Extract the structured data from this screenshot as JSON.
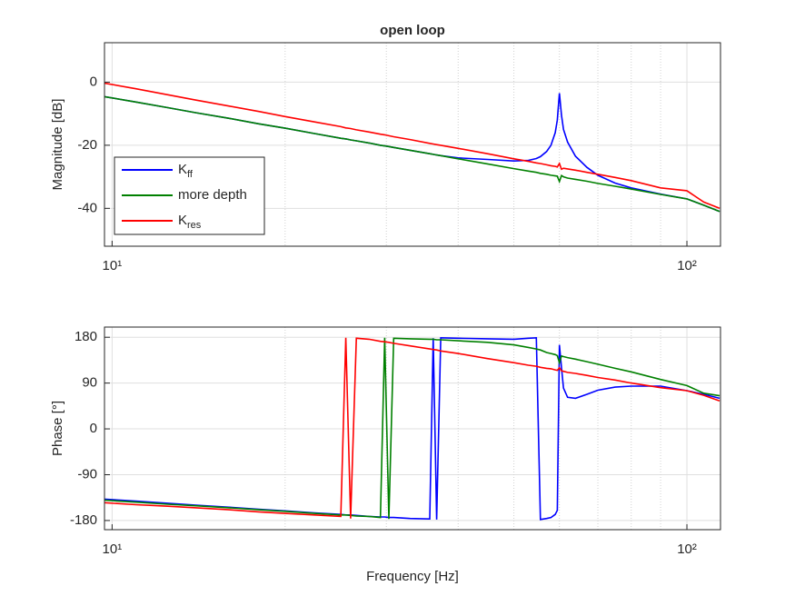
{
  "chart_data": [
    {
      "type": "line",
      "title": "open loop",
      "ylabel": "Magnitude [dB]",
      "log_x": true,
      "grid": true,
      "legend": "southwest",
      "xlim": [
        9.7,
        114.4
      ],
      "xticks": [
        {
          "value": 10,
          "label": "10¹"
        },
        {
          "value": 100,
          "label": "10²"
        }
      ],
      "xminorticks": [
        20,
        30,
        40,
        50,
        60,
        70,
        80,
        90
      ],
      "ylim": [
        -52,
        12.5
      ],
      "yticks": [
        -40,
        -20,
        0
      ],
      "x": [
        9.7,
        11,
        12.5,
        14,
        16,
        18,
        20,
        22.5,
        25,
        25.5,
        26,
        26.6,
        28,
        29.3,
        29.8,
        30.3,
        30.9,
        33,
        35.7,
        36.2,
        36.7,
        37.3,
        40,
        45,
        50,
        53,
        54.7,
        55.6,
        57,
        58,
        59,
        59.5,
        60,
        60.5,
        61,
        62,
        64,
        67,
        70,
        75,
        80,
        90,
        100,
        107,
        114
      ],
      "series": [
        {
          "name": "K_ff",
          "color": "#0000ff",
          "values": [
            -4.6,
            -6.3,
            -8.1,
            -9.7,
            -11.5,
            -13.2,
            -14.6,
            -16.3,
            -17.8,
            -18.0,
            -18.3,
            -18.6,
            -19.3,
            -20.0,
            -20.2,
            -20.4,
            -20.7,
            -21.6,
            -22.7,
            -22.9,
            -23.1,
            -23.3,
            -24.0,
            -24.5,
            -25.0,
            -24.8,
            -24.2,
            -23.6,
            -22.0,
            -20.0,
            -16.0,
            -12.0,
            -3.5,
            -10.5,
            -15.0,
            -19.0,
            -23.5,
            -27.0,
            -29.5,
            -32.0,
            -33.5,
            -35.5,
            -37.0,
            -39.0,
            -41.0
          ]
        },
        {
          "name": "more depth",
          "color": "#008000",
          "values": [
            -4.6,
            -6.3,
            -8.1,
            -9.7,
            -11.5,
            -13.2,
            -14.6,
            -16.3,
            -17.8,
            -18.0,
            -18.3,
            -18.6,
            -19.3,
            -20.0,
            -20.2,
            -20.4,
            -20.7,
            -21.6,
            -22.7,
            -22.9,
            -23.1,
            -23.3,
            -24.3,
            -25.9,
            -27.4,
            -28.2,
            -28.6,
            -28.9,
            -29.2,
            -29.5,
            -29.7,
            -29.8,
            -31.5,
            -29.6,
            -30.0,
            -30.4,
            -30.8,
            -31.4,
            -32.1,
            -33.0,
            -33.9,
            -35.6,
            -37.0,
            -39.0,
            -41.0
          ]
        },
        {
          "name": "K_res",
          "color": "#ff0000",
          "values": [
            -0.3,
            -2.1,
            -4.0,
            -5.7,
            -7.6,
            -9.3,
            -10.9,
            -12.6,
            -14.1,
            -14.5,
            -14.7,
            -15.1,
            -15.8,
            -16.5,
            -16.7,
            -17.0,
            -17.3,
            -18.2,
            -19.4,
            -19.6,
            -19.8,
            -20.0,
            -21.0,
            -22.7,
            -24.3,
            -25.1,
            -25.6,
            -25.8,
            -26.2,
            -26.5,
            -26.7,
            -26.9,
            -25.8,
            -27.6,
            -27.3,
            -27.5,
            -27.9,
            -28.6,
            -29.2,
            -30.2,
            -31.2,
            -33.5,
            -34.4,
            -38.0,
            -40.0
          ]
        }
      ]
    },
    {
      "type": "line",
      "ylabel": "Phase [°]",
      "xlabel": "Frequency [Hz]",
      "log_x": true,
      "grid": true,
      "xlim": [
        9.7,
        114.4
      ],
      "xticks": [
        {
          "value": 10,
          "label": "10¹"
        },
        {
          "value": 100,
          "label": "10²"
        }
      ],
      "xminorticks": [
        20,
        30,
        40,
        50,
        60,
        70,
        80,
        90
      ],
      "ylim": [
        -198,
        200
      ],
      "yticks": [
        -180,
        -90,
        0,
        90,
        180
      ],
      "x": [
        9.7,
        11,
        12.5,
        14,
        16,
        18,
        20,
        22.5,
        25,
        25.5,
        26,
        26.6,
        28,
        29.3,
        29.8,
        30.3,
        30.9,
        33,
        35.7,
        36.2,
        36.7,
        37.3,
        40,
        45,
        50,
        53,
        54.7,
        55.6,
        57,
        58,
        59,
        59.5,
        60,
        60.5,
        61,
        62,
        64,
        67,
        70,
        75,
        80,
        90,
        100,
        107,
        114
      ],
      "series": [
        {
          "color": "#0000ff",
          "values": [
            -138,
            -142,
            -146,
            -150,
            -154,
            -158,
            -161,
            -165,
            -168,
            -169,
            -169,
            -170,
            -172,
            -173,
            -173,
            -174,
            -174,
            -176,
            -177,
            178,
            -178,
            179,
            178,
            177,
            176,
            178,
            179,
            -178,
            -176,
            -174,
            -168,
            -160,
            165,
            120,
            80,
            62,
            60,
            68,
            76,
            82,
            84,
            84,
            75,
            68,
            60
          ]
        },
        {
          "color": "#008000",
          "values": [
            -140,
            -144,
            -148,
            -151,
            -155,
            -159,
            -162,
            -166,
            -169,
            -169,
            -170,
            -171,
            -172,
            -174,
            179,
            -177,
            178,
            177,
            176,
            176,
            175,
            175,
            173,
            170,
            165,
            160,
            157,
            155,
            150,
            148,
            146,
            144,
            130,
            143,
            142,
            140,
            137,
            132,
            127,
            119,
            112,
            97,
            85,
            70,
            65
          ]
        },
        {
          "color": "#ff0000",
          "values": [
            -145,
            -149,
            -152,
            -155,
            -159,
            -163,
            -166,
            -169,
            -172,
            179,
            -176,
            178,
            176,
            172,
            171,
            170,
            168,
            163,
            157,
            156,
            155,
            153,
            148,
            138,
            130,
            125,
            123,
            121,
            119,
            118,
            116,
            115,
            120,
            114,
            113,
            111,
            109,
            105,
            101,
            96,
            90,
            81,
            75,
            66,
            55
          ]
        }
      ]
    }
  ]
}
